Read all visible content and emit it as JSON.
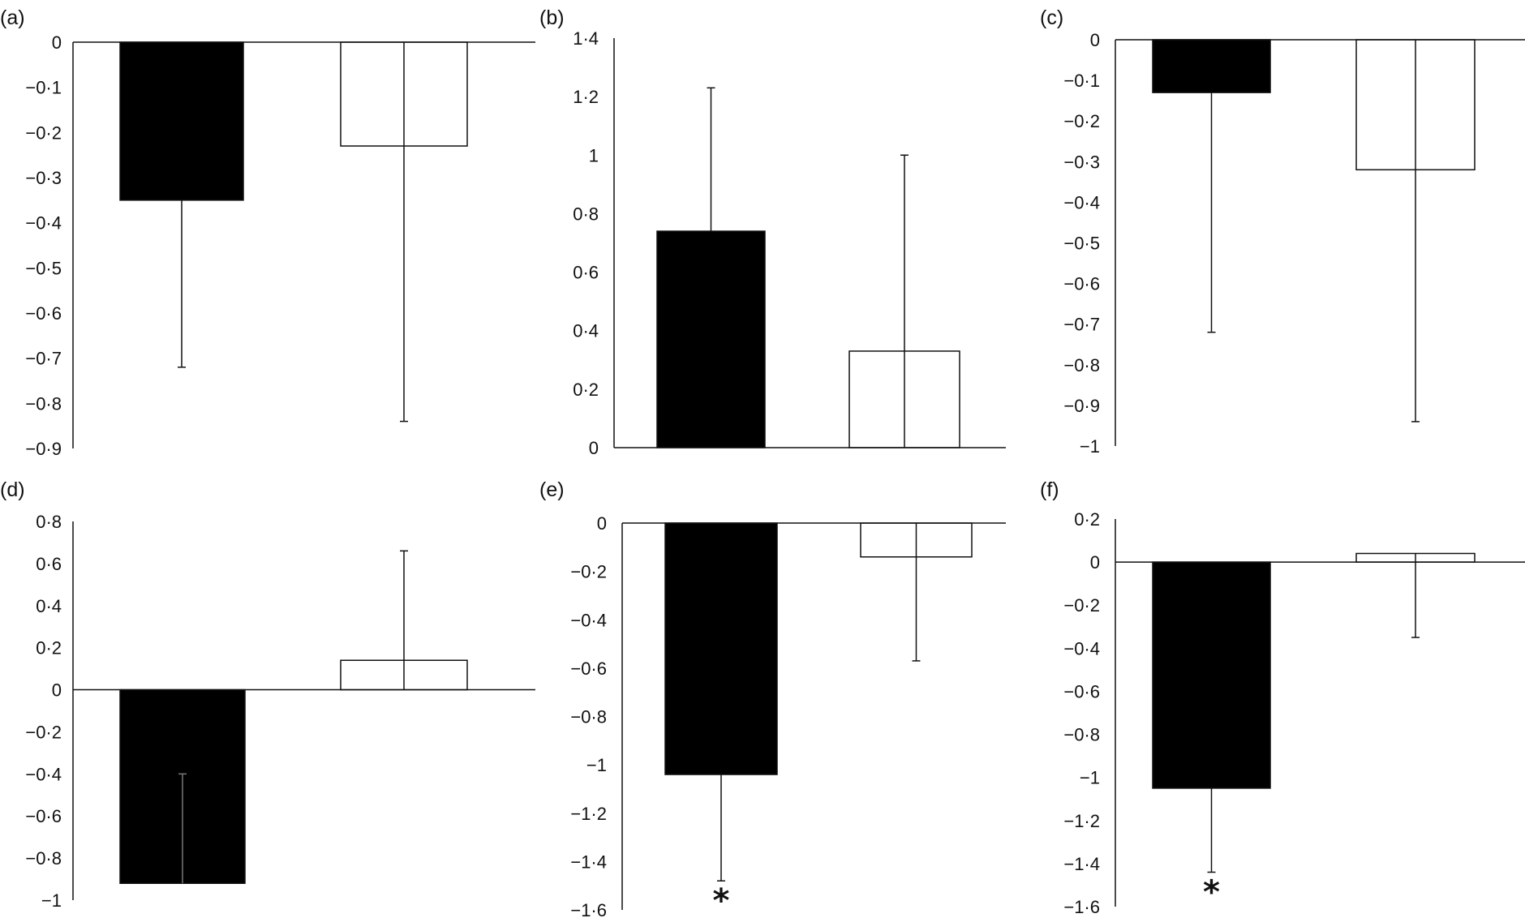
{
  "chart_data": [
    {
      "panel": "(a)",
      "type": "bar",
      "categories": [
        "",
        ""
      ],
      "values": [
        -0.35,
        -0.23
      ],
      "error_low": [
        -0.72,
        -0.84
      ],
      "bar_fills": [
        "#000000",
        "#ffffff"
      ],
      "ylim": [
        -0.9,
        0
      ],
      "tick_values": [
        0,
        -0.1,
        -0.2,
        -0.3,
        -0.4,
        -0.5,
        -0.6,
        -0.7,
        -0.8,
        -0.9
      ],
      "tick_labels": [
        "0",
        "−0·1",
        "−0·2",
        "−0·3",
        "−0·4",
        "−0·5",
        "−0·6",
        "−0·7",
        "−0·8",
        "−0·9"
      ],
      "annotations": [
        "",
        ""
      ],
      "grid": false
    },
    {
      "panel": "(b)",
      "type": "bar",
      "categories": [
        "",
        ""
      ],
      "values": [
        0.74,
        0.33
      ],
      "error_high": [
        1.23,
        1.0
      ],
      "bar_fills": [
        "#000000",
        "#ffffff"
      ],
      "ylim": [
        0,
        1.4
      ],
      "tick_values": [
        1.4,
        1.2,
        1,
        0.8,
        0.6,
        0.4,
        0.2,
        0
      ],
      "tick_labels": [
        "1·4",
        "1·2",
        "1",
        "0·8",
        "0·6",
        "0·4",
        "0·2",
        "0"
      ],
      "annotations": [
        "",
        ""
      ],
      "grid": false
    },
    {
      "panel": "(c)",
      "type": "bar",
      "categories": [
        "",
        ""
      ],
      "values": [
        -0.13,
        -0.32
      ],
      "error_low": [
        -0.72,
        -0.94
      ],
      "bar_fills": [
        "#000000",
        "#ffffff"
      ],
      "ylim": [
        -1,
        0
      ],
      "tick_values": [
        0,
        -0.1,
        -0.2,
        -0.3,
        -0.4,
        -0.5,
        -0.6,
        -0.7,
        -0.8,
        -0.9,
        -1
      ],
      "tick_labels": [
        "0",
        "−0·1",
        "−0·2",
        "−0·3",
        "−0·4",
        "−0·5",
        "−0·6",
        "−0·7",
        "−0·8",
        "−0·9",
        "−1"
      ],
      "annotations": [
        "",
        ""
      ],
      "grid": false
    },
    {
      "panel": "(d)",
      "type": "bar",
      "categories": [
        "",
        ""
      ],
      "values": [
        -0.92,
        0.14
      ],
      "error_low": [
        -0.4,
        null
      ],
      "error_high": [
        null,
        0.66
      ],
      "bar_fills": [
        "#000000",
        "#ffffff"
      ],
      "ylim": [
        -1,
        0.8
      ],
      "tick_values": [
        0.8,
        0.6,
        0.4,
        0.2,
        0,
        -0.2,
        -0.4,
        -0.6,
        -0.8,
        -1
      ],
      "tick_labels": [
        "0·8",
        "0·6",
        "0·4",
        "0·2",
        "0",
        "−0·2",
        "−0·4",
        "−0·6",
        "−0·8",
        "−1"
      ],
      "annotations": [
        "",
        ""
      ],
      "grid": false
    },
    {
      "panel": "(e)",
      "type": "bar",
      "categories": [
        "",
        ""
      ],
      "values": [
        -1.04,
        -0.14
      ],
      "error_low": [
        -1.48,
        -0.57
      ],
      "bar_fills": [
        "#000000",
        "#ffffff"
      ],
      "ylim": [
        -1.6,
        0
      ],
      "tick_values": [
        0,
        -0.2,
        -0.4,
        -0.6,
        -0.8,
        -1,
        -1.2,
        -1.4,
        -1.6
      ],
      "tick_labels": [
        "0",
        "−0·2",
        "−0·4",
        "−0·6",
        "−0·8",
        "−1",
        "−1·2",
        "−1·4",
        "−1·6"
      ],
      "annotations": [
        "*",
        ""
      ],
      "grid": false
    },
    {
      "panel": "(f)",
      "type": "bar",
      "categories": [
        "",
        ""
      ],
      "values": [
        -1.05,
        0.04
      ],
      "error_low": [
        -1.44,
        -0.35
      ],
      "bar_fills": [
        "#000000",
        "#ffffff"
      ],
      "ylim": [
        -1.6,
        0.2
      ],
      "tick_values": [
        0.2,
        0,
        -0.2,
        -0.4,
        -0.6,
        -0.8,
        -1,
        -1.2,
        -1.4,
        -1.6
      ],
      "tick_labels": [
        "0·2",
        "0",
        "−0·2",
        "−0·4",
        "−0·6",
        "−0·8",
        "−1",
        "−1·2",
        "−1·4",
        "−1·6"
      ],
      "annotations": [
        "*",
        ""
      ],
      "grid": false
    }
  ]
}
